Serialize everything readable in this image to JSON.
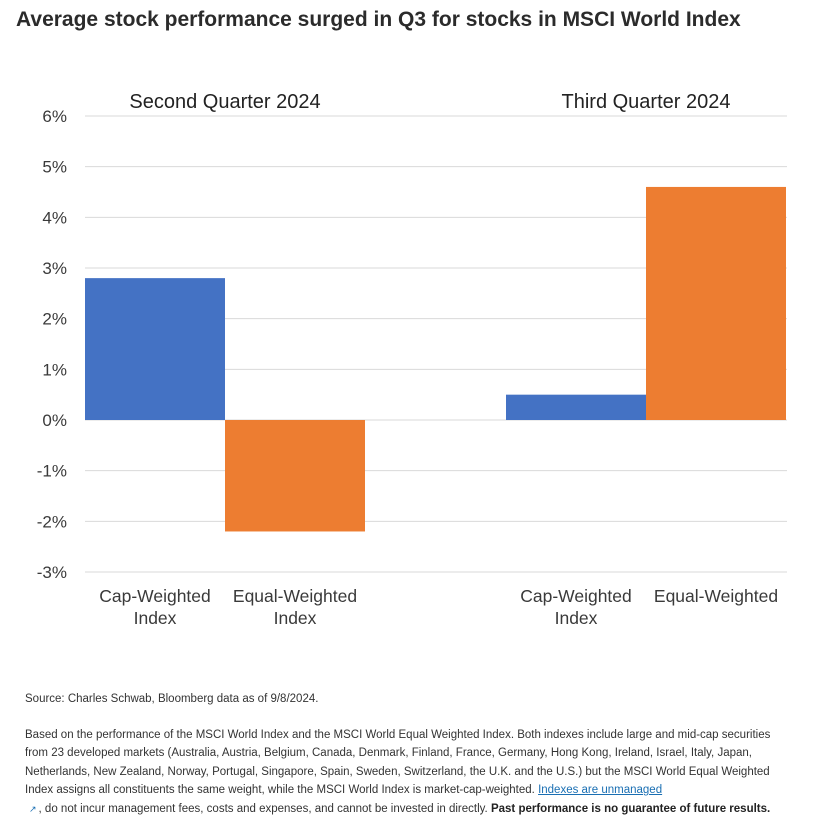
{
  "title": "Average stock performance surged in Q3 for stocks in MSCI World Index",
  "chart_data": {
    "type": "bar",
    "ylim": [
      -3,
      6
    ],
    "yticks": [
      6,
      5,
      4,
      3,
      2,
      1,
      0,
      -1,
      -2,
      -3
    ],
    "ytick_labels": [
      "6%",
      "5%",
      "4%",
      "3%",
      "2%",
      "1%",
      "0%",
      "-1%",
      "-2%",
      "-3%"
    ],
    "grid": true,
    "groups": [
      {
        "label": "Second Quarter 2024",
        "bars": [
          {
            "category": "Cap-Weighted Index",
            "label_lines": [
              "Cap-Weighted",
              "Index"
            ],
            "value": 2.8,
            "color": "#4472c4"
          },
          {
            "category": "Equal-Weighted Index",
            "label_lines": [
              "Equal-Weighted",
              "Index"
            ],
            "value": -2.2,
            "color": "#ed7d31"
          }
        ]
      },
      {
        "label": "Third Quarter 2024",
        "bars": [
          {
            "category": "Cap-Weighted Index",
            "label_lines": [
              "Cap-Weighted",
              "Index"
            ],
            "value": 0.5,
            "color": "#4472c4"
          },
          {
            "category": "Equal-Weighted",
            "label_lines": [
              "Equal-Weighted"
            ],
            "value": 4.6,
            "color": "#ed7d31"
          }
        ]
      }
    ]
  },
  "source": "Source: Charles Schwab, Bloomberg data as of 9/8/2024.",
  "footnote": {
    "text_before_link": "Based on the performance of the MSCI World Index and the MSCI World Equal Weighted Index. Both indexes include large and mid-cap securities from 23 developed markets (Australia, Austria, Belgium, Canada, Denmark, Finland, France, Germany, Hong Kong, Ireland, Israel, Italy, Japan, Netherlands, New Zealand, Norway, Portugal, Singapore, Spain, Sweden, Switzerland, the U.K. and the U.S.) but the MSCI World Equal Weighted Index assigns all constituents the same weight, while the MSCI World Index is market-cap-weighted. ",
    "link_text": "Indexes are unmanaged",
    "external_icon": "external-link-icon",
    "text_after_link": ", do not incur management fees, costs and expenses, and cannot be invested in directly. ",
    "bold_text": "Past performance is no guarantee of future results."
  },
  "colors": {
    "cap_weighted": "#4472c4",
    "equal_weighted": "#ed7d31",
    "grid": "#d9d9d9",
    "link": "#1a6fb3"
  }
}
